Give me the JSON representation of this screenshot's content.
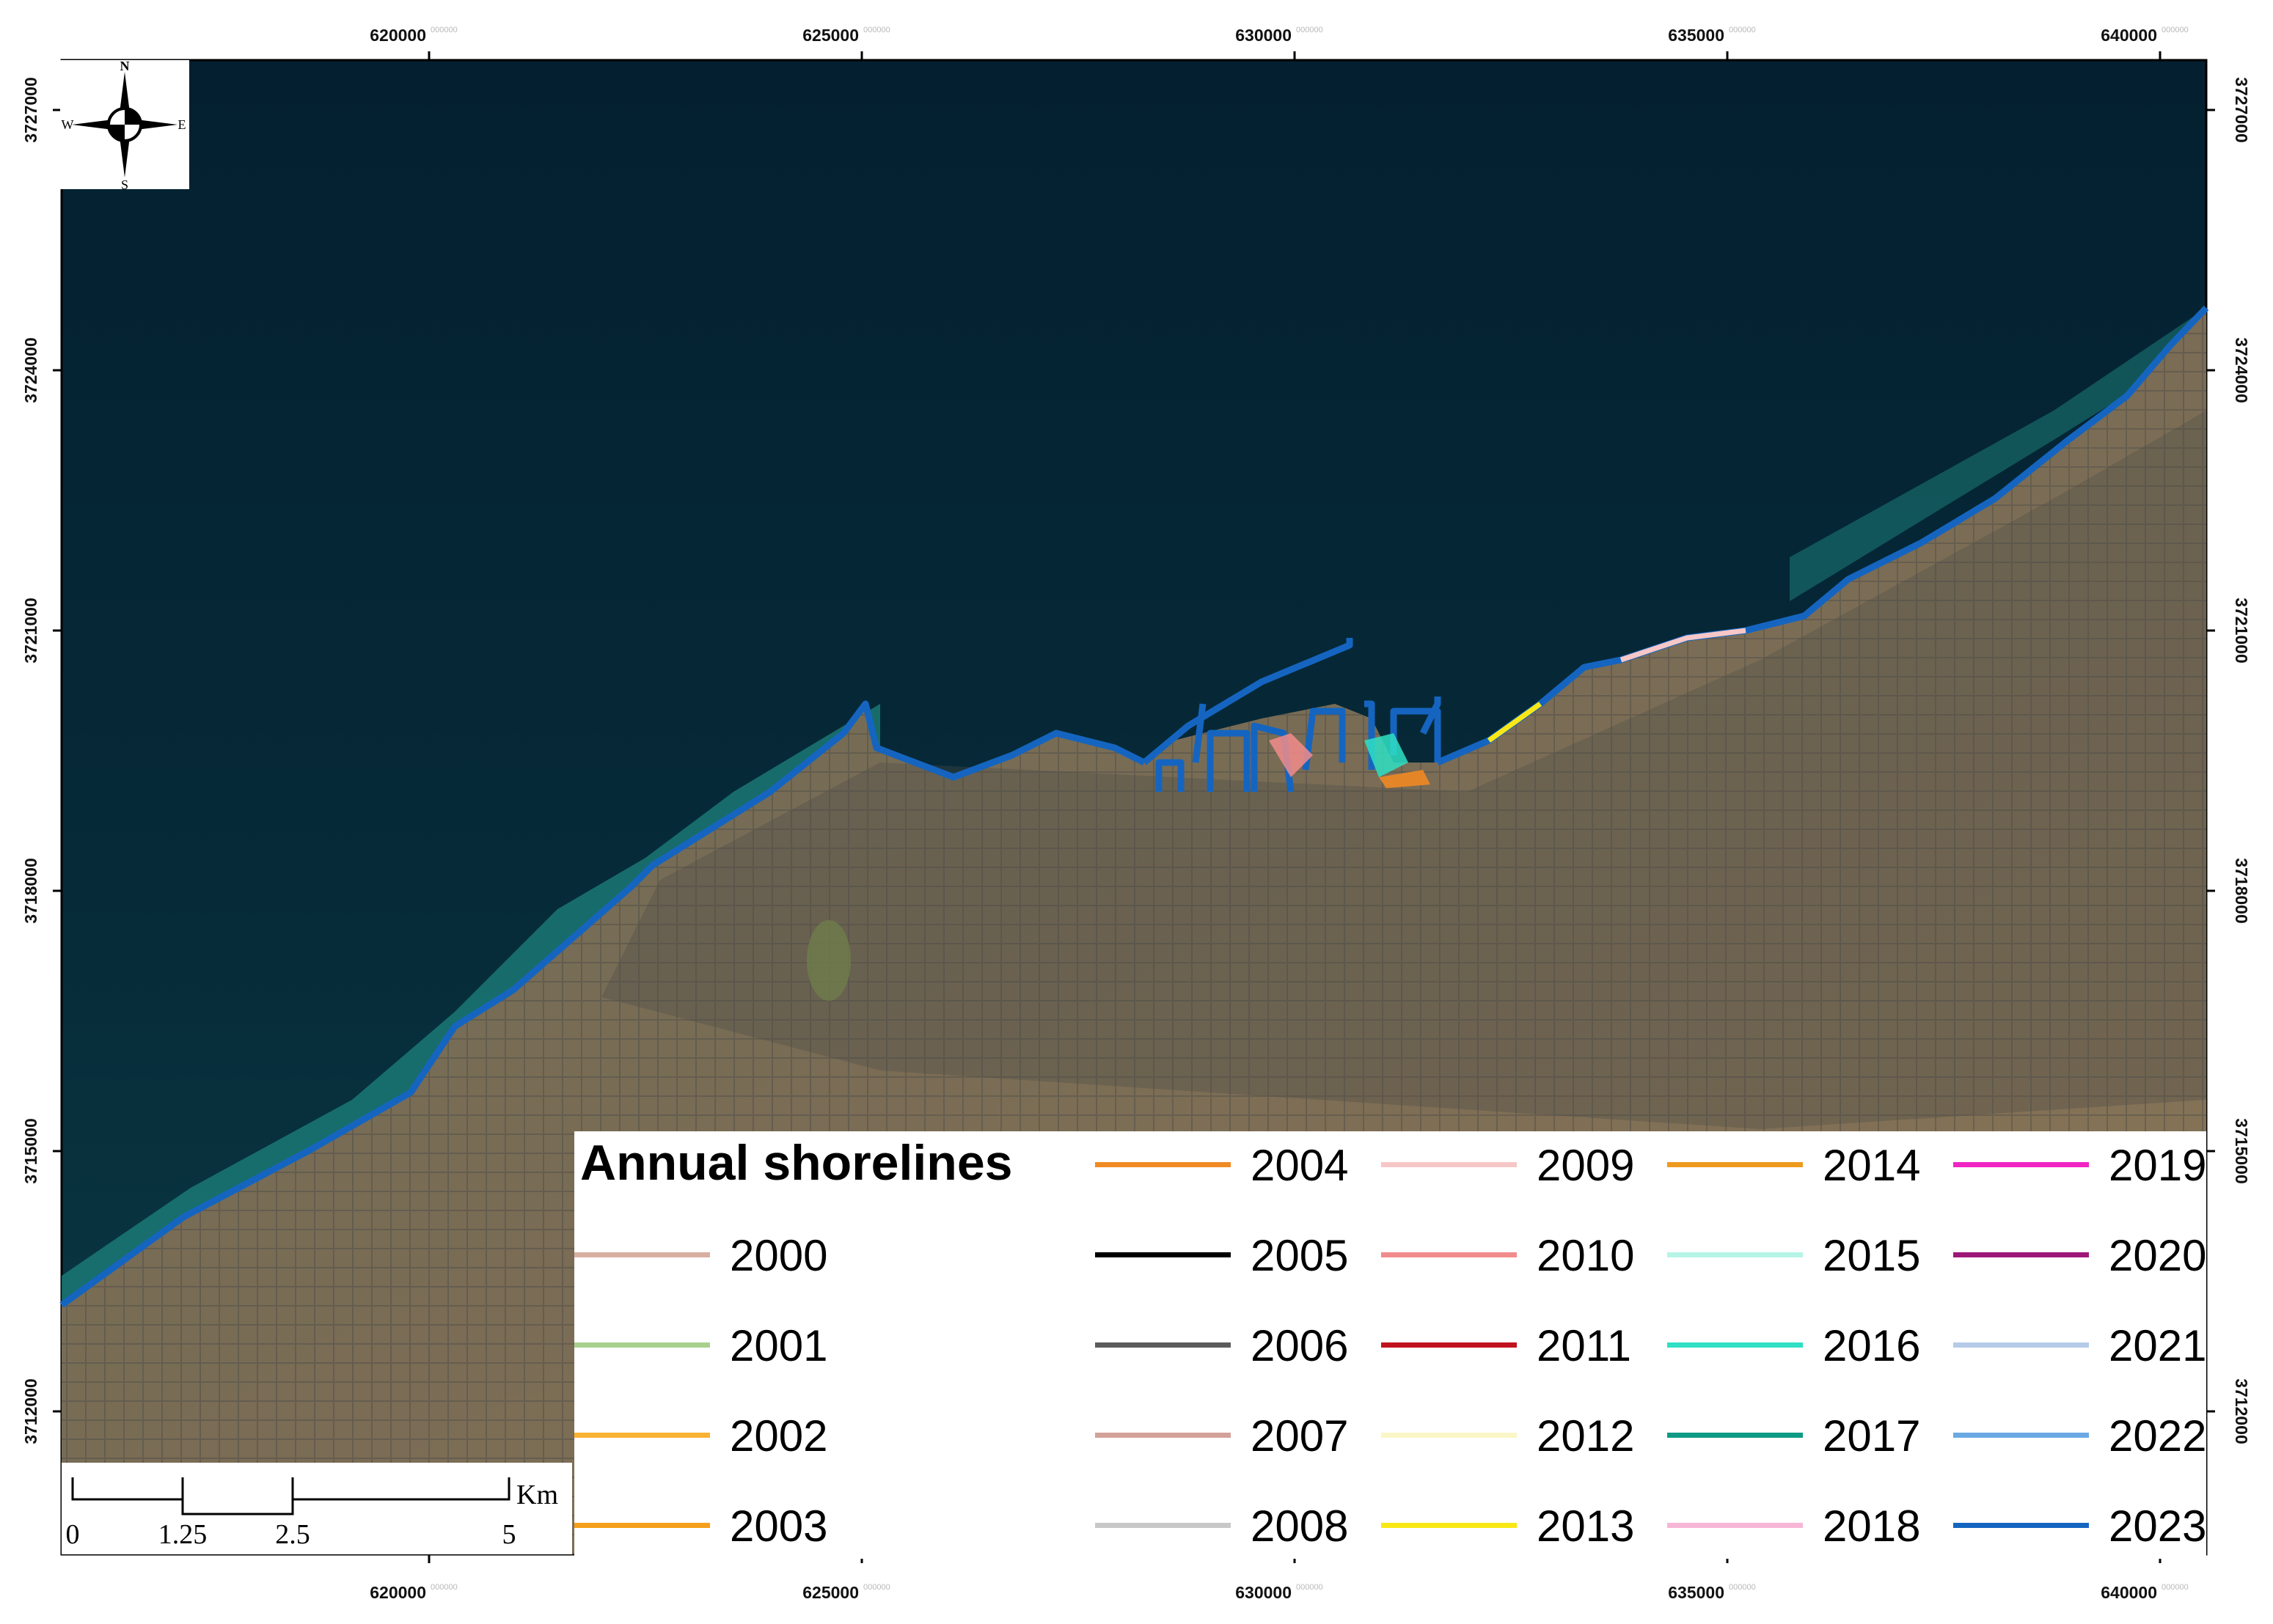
{
  "map": {
    "x_ticks": [
      "620000",
      "625000",
      "630000",
      "635000",
      "640000"
    ],
    "y_ticks": [
      "3727000",
      "3724000",
      "3721000",
      "3718000",
      "3715000",
      "3712000"
    ],
    "tick_suffix": "000000",
    "colors": {
      "sea": "#062433",
      "sea_shallow": "#1f8a82",
      "land": "#6b6048",
      "shoreline": "#1565c0"
    }
  },
  "compass": {
    "n": "N",
    "s": "S",
    "e": "E",
    "w": "W"
  },
  "scalebar": {
    "labels": [
      "0",
      "1.25",
      "2.5",
      "5"
    ],
    "unit": "Km"
  },
  "legend": {
    "title": "Annual shorelines",
    "items": [
      {
        "year": "2000",
        "color": "#d7b0a2"
      },
      {
        "year": "2001",
        "color": "#a9d18e"
      },
      {
        "year": "2002",
        "color": "#f9b233"
      },
      {
        "year": "2003",
        "color": "#f59f1c"
      },
      {
        "year": "2004",
        "color": "#f08a24"
      },
      {
        "year": "2005",
        "color": "#000000"
      },
      {
        "year": "2006",
        "color": "#5c5c5c"
      },
      {
        "year": "2007",
        "color": "#d4a19a"
      },
      {
        "year": "2008",
        "color": "#c8c8c8"
      },
      {
        "year": "2009",
        "color": "#f7c7c7"
      },
      {
        "year": "2010",
        "color": "#f28c8c"
      },
      {
        "year": "2011",
        "color": "#c1121f"
      },
      {
        "year": "2012",
        "color": "#fbf6c8"
      },
      {
        "year": "2013",
        "color": "#f9e816"
      },
      {
        "year": "2014",
        "color": "#ee9a1f"
      },
      {
        "year": "2015",
        "color": "#b6f4e6"
      },
      {
        "year": "2016",
        "color": "#2fe0c4"
      },
      {
        "year": "2017",
        "color": "#0e9b86"
      },
      {
        "year": "2018",
        "color": "#f7b6d6"
      },
      {
        "year": "2019",
        "color": "#f025c4"
      },
      {
        "year": "2020",
        "color": "#9e1877"
      },
      {
        "year": "2021",
        "color": "#b6cbe8"
      },
      {
        "year": "2022",
        "color": "#6aa9e4"
      },
      {
        "year": "2023",
        "color": "#1565c0"
      }
    ]
  }
}
